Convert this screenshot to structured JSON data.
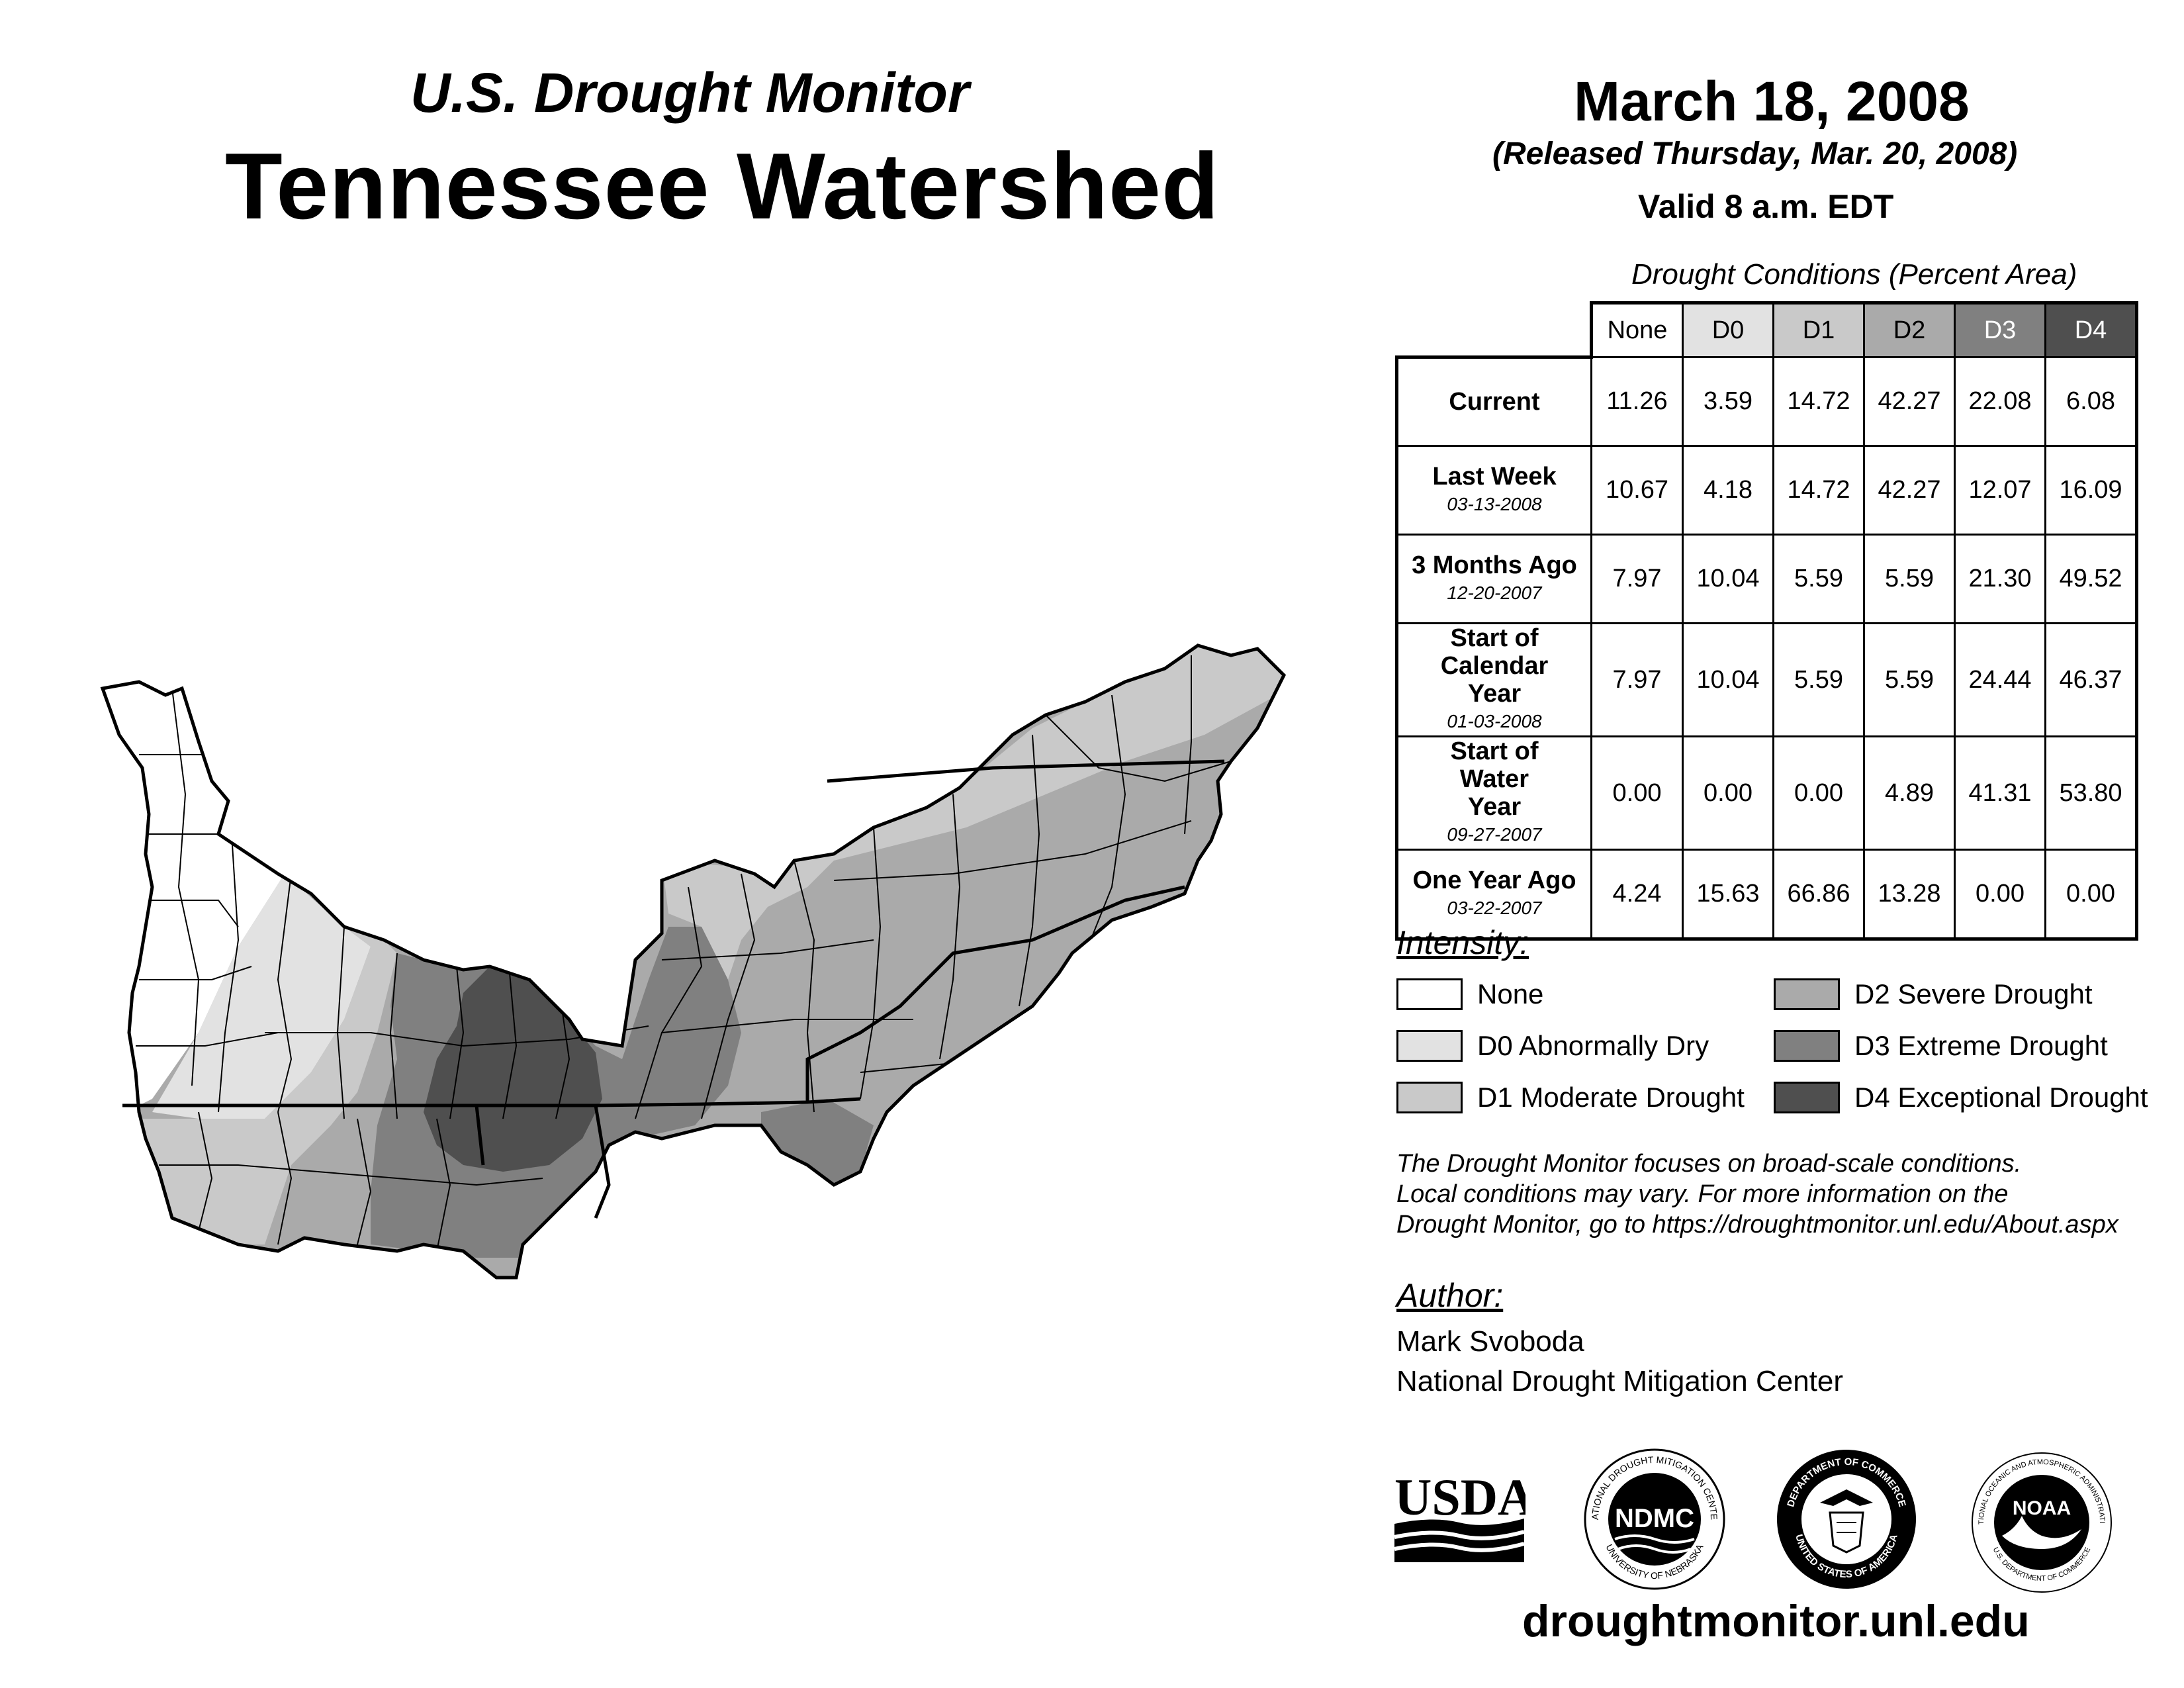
{
  "header": {
    "subtitle": "U.S. Drought Monitor",
    "title": "Tennessee Watershed",
    "date": "March 18, 2008",
    "released": "(Released Thursday, Mar. 20, 2008)",
    "valid": "Valid 8 a.m. EDT"
  },
  "table": {
    "caption": "Drought Conditions (Percent Area)",
    "columns": [
      "None",
      "D0",
      "D1",
      "D2",
      "D3",
      "D4"
    ],
    "rows": [
      {
        "label": "Current",
        "date": "",
        "values": [
          "11.26",
          "3.59",
          "14.72",
          "42.27",
          "22.08",
          "6.08"
        ]
      },
      {
        "label": "Last Week",
        "date": "03-13-2008",
        "values": [
          "10.67",
          "4.18",
          "14.72",
          "42.27",
          "12.07",
          "16.09"
        ]
      },
      {
        "label": "3 Months Ago",
        "date": "12-20-2007",
        "values": [
          "7.97",
          "10.04",
          "5.59",
          "5.59",
          "21.30",
          "49.52"
        ]
      },
      {
        "label": "Start of Calendar Year",
        "date": "01-03-2008",
        "values": [
          "7.97",
          "10.04",
          "5.59",
          "5.59",
          "24.44",
          "46.37"
        ]
      },
      {
        "label": "Start of Water Year",
        "date": "09-27-2007",
        "values": [
          "0.00",
          "0.00",
          "0.00",
          "4.89",
          "41.31",
          "53.80"
        ]
      },
      {
        "label": "One Year Ago",
        "date": "03-22-2007",
        "values": [
          "4.24",
          "15.63",
          "66.86",
          "13.28",
          "0.00",
          "0.00"
        ]
      }
    ]
  },
  "legend": {
    "title": "Intensity:",
    "items": [
      {
        "label": "None",
        "color": "#ffffff"
      },
      {
        "label": "D0 Abnormally Dry",
        "color": "#e2e2e2"
      },
      {
        "label": "D1 Moderate Drought",
        "color": "#c9c9c9"
      },
      {
        "label": "D2 Severe Drought",
        "color": "#aaaaaa"
      },
      {
        "label": "D3 Extreme Drought",
        "color": "#808080"
      },
      {
        "label": "D4 Exceptional Drought",
        "color": "#4f4f4f"
      }
    ]
  },
  "note": {
    "line1": "The Drought Monitor focuses on broad-scale conditions.",
    "line2": "Local conditions may vary. For more information on the",
    "line3": "Drought Monitor, go to https://droughtmonitor.unl.edu/About.aspx"
  },
  "author": {
    "title": "Author:",
    "name": "Mark Svoboda",
    "org": "National Drought Mitigation Center"
  },
  "logos": {
    "usda": "USDA",
    "ndmc": "NDMC",
    "ndmc_ring_top": "NATIONAL DROUGHT MITIGATION CENTER",
    "ndmc_ring_bottom": "UNIVERSITY OF NEBRASKA",
    "doc_ring_top": "DEPARTMENT OF COMMERCE",
    "doc_ring_bottom": "UNITED STATES OF AMERICA",
    "noaa": "NOAA",
    "noaa_ring_top": "NATIONAL OCEANIC AND ATMOSPHERIC ADMINISTRATION",
    "noaa_ring_bottom": "U.S. DEPARTMENT OF COMMERCE"
  },
  "footer": {
    "url": "droughtmonitor.unl.edu"
  },
  "map": {
    "category_colors": {
      "None": "#ffffff",
      "D0": "#e2e2e2",
      "D1": "#c9c9c9",
      "D2": "#aaaaaa",
      "D3": "#808080",
      "D4": "#4f4f4f"
    }
  }
}
